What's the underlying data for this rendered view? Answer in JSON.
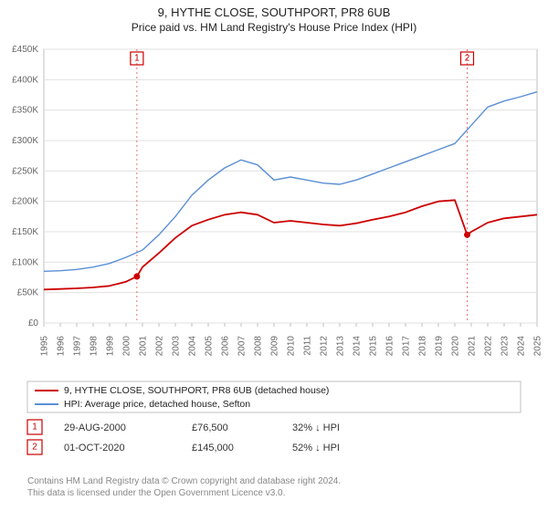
{
  "title_line1": "9, HYTHE CLOSE, SOUTHPORT, PR8 6UB",
  "title_line2": "Price paid vs. HM Land Registry's House Price Index (HPI)",
  "chart": {
    "type": "line",
    "background_color": "#ffffff",
    "plot_border_color": "#c0c0c0",
    "grid_color": "#e0e0e0",
    "font_family": "Arial",
    "axis_label_fontsize": 10,
    "axis_label_color": "#666666",
    "x": {
      "min": 1995,
      "max": 2025,
      "ticks": [
        1995,
        1996,
        1997,
        1998,
        1999,
        2000,
        2001,
        2002,
        2003,
        2004,
        2005,
        2006,
        2007,
        2008,
        2009,
        2010,
        2011,
        2012,
        2013,
        2014,
        2015,
        2016,
        2017,
        2018,
        2019,
        2020,
        2021,
        2022,
        2023,
        2024,
        2025
      ]
    },
    "y": {
      "min": 0,
      "max": 450000,
      "tick_step": 50000,
      "tick_labels": [
        "£0",
        "£50K",
        "£100K",
        "£150K",
        "£200K",
        "£250K",
        "£300K",
        "£350K",
        "£400K",
        "£450K"
      ]
    },
    "series": [
      {
        "name": "9, HYTHE CLOSE, SOUTHPORT, PR8 6UB (detached house)",
        "color": "#cc0000",
        "line_width": 1.8,
        "points": [
          [
            1995,
            55000
          ],
          [
            1996,
            56000
          ],
          [
            1997,
            57000
          ],
          [
            1998,
            58500
          ],
          [
            1999,
            61000
          ],
          [
            2000,
            68000
          ],
          [
            2000.66,
            76500
          ],
          [
            2001,
            92000
          ],
          [
            2002,
            115000
          ],
          [
            2003,
            140000
          ],
          [
            2004,
            160000
          ],
          [
            2005,
            170000
          ],
          [
            2006,
            178000
          ],
          [
            2007,
            182000
          ],
          [
            2008,
            178000
          ],
          [
            2009,
            165000
          ],
          [
            2010,
            168000
          ],
          [
            2011,
            165000
          ],
          [
            2012,
            162000
          ],
          [
            2013,
            160000
          ],
          [
            2014,
            164000
          ],
          [
            2015,
            170000
          ],
          [
            2016,
            175000
          ],
          [
            2017,
            182000
          ],
          [
            2018,
            192000
          ],
          [
            2019,
            200000
          ],
          [
            2020,
            202000
          ],
          [
            2020.75,
            145000
          ],
          [
            2021,
            150000
          ],
          [
            2022,
            165000
          ],
          [
            2023,
            172000
          ],
          [
            2024,
            175000
          ],
          [
            2025,
            178000
          ]
        ]
      },
      {
        "name": "HPI: Average price, detached house, Sefton",
        "color": "#5b8fd6",
        "line_width": 1.4,
        "points": [
          [
            1995,
            85000
          ],
          [
            1996,
            86000
          ],
          [
            1997,
            88000
          ],
          [
            1998,
            92000
          ],
          [
            1999,
            98000
          ],
          [
            2000,
            108000
          ],
          [
            2001,
            120000
          ],
          [
            2002,
            145000
          ],
          [
            2003,
            175000
          ],
          [
            2004,
            210000
          ],
          [
            2005,
            235000
          ],
          [
            2006,
            255000
          ],
          [
            2007,
            268000
          ],
          [
            2008,
            260000
          ],
          [
            2009,
            235000
          ],
          [
            2010,
            240000
          ],
          [
            2011,
            235000
          ],
          [
            2012,
            230000
          ],
          [
            2013,
            228000
          ],
          [
            2014,
            235000
          ],
          [
            2015,
            245000
          ],
          [
            2016,
            255000
          ],
          [
            2017,
            265000
          ],
          [
            2018,
            275000
          ],
          [
            2019,
            285000
          ],
          [
            2020,
            295000
          ],
          [
            2021,
            325000
          ],
          [
            2022,
            355000
          ],
          [
            2023,
            365000
          ],
          [
            2024,
            372000
          ],
          [
            2025,
            380000
          ]
        ]
      }
    ],
    "markers": [
      {
        "label": "1",
        "x": 2000.66,
        "y": 76500,
        "color": "#cc0000",
        "line_dash": "2,3"
      },
      {
        "label": "2",
        "x": 2020.75,
        "y": 145000,
        "color": "#cc0000",
        "line_dash": "2,3"
      }
    ]
  },
  "legend": {
    "items": [
      {
        "label": "9, HYTHE CLOSE, SOUTHPORT, PR8 6UB (detached house)",
        "color": "#cc0000"
      },
      {
        "label": "HPI: Average price, detached house, Sefton",
        "color": "#5b8fd6"
      }
    ]
  },
  "transactions": [
    {
      "marker": "1",
      "date": "29-AUG-2000",
      "price": "£76,500",
      "delta": "32% ↓ HPI",
      "color": "#cc0000"
    },
    {
      "marker": "2",
      "date": "01-OCT-2020",
      "price": "£145,000",
      "delta": "52% ↓ HPI",
      "color": "#cc0000"
    }
  ],
  "credits_line1": "Contains HM Land Registry data © Crown copyright and database right 2024.",
  "credits_line2": "This data is licensed under the Open Government Licence v3.0."
}
